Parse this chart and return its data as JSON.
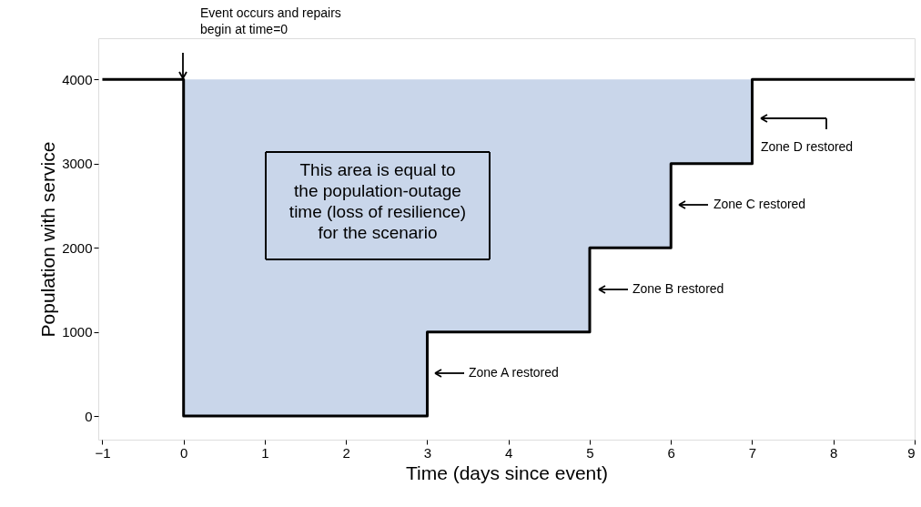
{
  "chart_data": {
    "type": "step",
    "xlabel": "Time (days since event)",
    "ylabel": "Population with service",
    "x": [
      -1,
      0,
      3,
      5,
      6,
      7,
      9
    ],
    "series": [
      {
        "color": "#000000",
        "values": [
          4000,
          0,
          1000,
          2000,
          3000,
          4000,
          4000
        ],
        "lower": [
          4000,
          0,
          1000,
          2000,
          3000,
          4000,
          4000
        ],
        "upper": [
          4000,
          4000,
          4000,
          4000,
          4000,
          4000,
          4000
        ]
      }
    ],
    "xlim": [
      -1.05,
      9
    ],
    "xticks": [
      -1,
      0,
      1,
      2,
      3,
      4,
      5,
      6,
      7,
      8,
      9
    ],
    "ylim": [
      -280,
      4490
    ],
    "yticks": [
      0,
      1000,
      2000,
      3000,
      4000
    ],
    "grid": false,
    "marker": "none",
    "line_style": "solid",
    "annotations": [
      "Event occurs and repairs\nbegin at time=0",
      "Zone A restored",
      "Zone B restored",
      "Zone C restored",
      "Zone D restored",
      "This area is equal to\nthe population-outage\ntime (loss of resilience)\nfor the scenario"
    ]
  }
}
